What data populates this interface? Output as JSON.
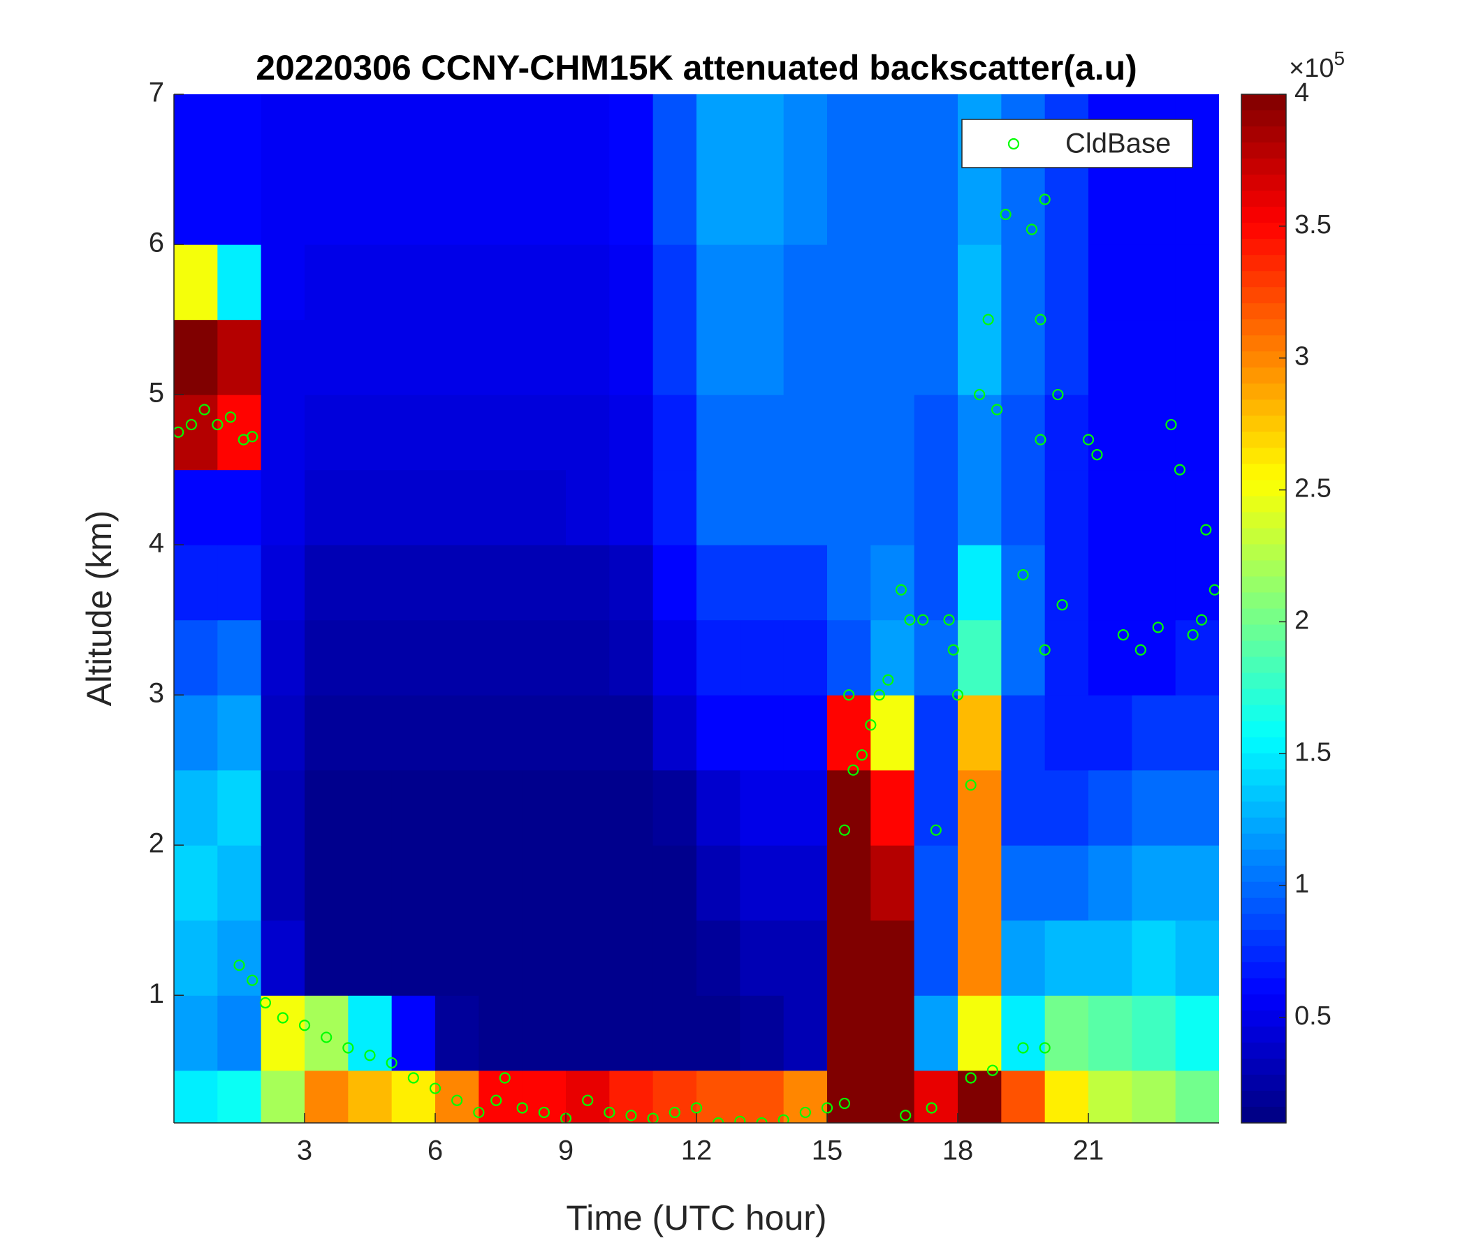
{
  "chart_data": {
    "type": "heatmap",
    "title": "20220306 CCNY-CHM15K attenuated backscatter(a.u)",
    "x_label": "Time (UTC hour)",
    "y_label": "Altitude (km)",
    "xlim": [
      0,
      24
    ],
    "xticks": [
      3,
      6,
      9,
      12,
      15,
      18,
      21
    ],
    "ylim": [
      0.15,
      7
    ],
    "yticks": [
      1,
      2,
      3,
      4,
      5,
      6,
      7
    ],
    "colormap": "jet",
    "clim": [
      0.1,
      4
    ],
    "cticks": [
      0.5,
      1,
      1.5,
      2,
      2.5,
      3,
      3.5,
      4
    ],
    "colorbar_multiplier_base": "×10",
    "colorbar_multiplier_exponent": "5",
    "legend_position": "upper right",
    "heatmap": {
      "x": [
        0.5,
        1.5,
        2.5,
        3.5,
        4.5,
        5.5,
        6.5,
        7.5,
        8.5,
        9.5,
        10.5,
        11.5,
        12.5,
        13.5,
        14.5,
        15.5,
        16.5,
        17.5,
        18.5,
        19.5,
        20.5,
        21.5,
        22.5,
        23.5
      ],
      "y": [
        0.25,
        0.75,
        1.25,
        1.75,
        2.25,
        2.75,
        3.25,
        3.75,
        4.25,
        4.75,
        5.25,
        5.75,
        6.25,
        6.75
      ],
      "z": [
        [
          1.5,
          1.6,
          2.2,
          3.0,
          2.8,
          2.6,
          3.0,
          3.5,
          3.5,
          3.6,
          3.4,
          3.3,
          3.2,
          3.2,
          3.0,
          4,
          4,
          3.6,
          4,
          3.2,
          2.6,
          2.3,
          2.2,
          2.0
        ],
        [
          1.2,
          1.1,
          2.5,
          2.2,
          1.5,
          0.6,
          0.2,
          0.15,
          0.15,
          0.15,
          0.15,
          0.15,
          0.15,
          0.2,
          0.3,
          4,
          4,
          1.2,
          2.5,
          1.5,
          2.0,
          1.9,
          1.8,
          1.6
        ],
        [
          1.3,
          1.2,
          0.4,
          0.15,
          0.15,
          0.15,
          0.15,
          0.15,
          0.15,
          0.15,
          0.15,
          0.15,
          0.2,
          0.3,
          0.3,
          4,
          4,
          0.9,
          3.0,
          1.2,
          1.3,
          1.3,
          1.4,
          1.3
        ],
        [
          1.4,
          1.3,
          0.3,
          0.15,
          0.15,
          0.15,
          0.15,
          0.15,
          0.15,
          0.15,
          0.15,
          0.15,
          0.3,
          0.4,
          0.4,
          4,
          3.8,
          0.9,
          3.0,
          1.0,
          1.0,
          1.1,
          1.2,
          1.2
        ],
        [
          1.3,
          1.4,
          0.3,
          0.15,
          0.15,
          0.15,
          0.15,
          0.15,
          0.15,
          0.15,
          0.15,
          0.2,
          0.4,
          0.5,
          0.5,
          4,
          3.5,
          0.8,
          3.0,
          0.8,
          0.8,
          0.9,
          1.0,
          1.0
        ],
        [
          1.1,
          1.2,
          0.35,
          0.2,
          0.2,
          0.2,
          0.2,
          0.2,
          0.2,
          0.2,
          0.2,
          0.4,
          0.6,
          0.6,
          0.6,
          3.5,
          2.5,
          0.8,
          2.8,
          0.8,
          0.7,
          0.7,
          0.8,
          0.8
        ],
        [
          0.9,
          1.0,
          0.4,
          0.25,
          0.25,
          0.25,
          0.25,
          0.25,
          0.25,
          0.25,
          0.3,
          0.5,
          0.7,
          0.7,
          0.7,
          0.9,
          1.2,
          1.0,
          1.8,
          1.0,
          0.7,
          0.6,
          0.6,
          0.7
        ],
        [
          0.7,
          0.7,
          0.45,
          0.3,
          0.3,
          0.3,
          0.3,
          0.3,
          0.3,
          0.3,
          0.35,
          0.6,
          0.8,
          0.8,
          0.8,
          1.0,
          1.1,
          0.9,
          1.5,
          1.0,
          0.7,
          0.6,
          0.6,
          0.6
        ],
        [
          0.6,
          0.6,
          0.5,
          0.4,
          0.4,
          0.4,
          0.4,
          0.4,
          0.4,
          0.45,
          0.5,
          0.7,
          1.0,
          1.0,
          1.0,
          1.0,
          1.0,
          0.9,
          1.1,
          0.9,
          0.7,
          0.6,
          0.6,
          0.6
        ],
        [
          3.8,
          3.5,
          0.5,
          0.45,
          0.45,
          0.45,
          0.45,
          0.45,
          0.45,
          0.45,
          0.5,
          0.7,
          1.0,
          1.0,
          1.0,
          1.0,
          1.0,
          0.9,
          1.1,
          0.9,
          0.7,
          0.6,
          0.6,
          0.6
        ],
        [
          4,
          3.8,
          0.5,
          0.5,
          0.5,
          0.5,
          0.5,
          0.5,
          0.5,
          0.5,
          0.55,
          0.8,
          1.1,
          1.1,
          1.0,
          1.0,
          1.0,
          1.0,
          1.3,
          1.0,
          0.8,
          0.6,
          0.6,
          0.6
        ],
        [
          2.5,
          1.5,
          0.55,
          0.5,
          0.5,
          0.5,
          0.5,
          0.5,
          0.5,
          0.5,
          0.55,
          0.8,
          1.1,
          1.1,
          1.0,
          1.0,
          1.0,
          1.0,
          1.3,
          1.0,
          0.8,
          0.6,
          0.6,
          0.6
        ],
        [
          0.6,
          0.6,
          0.55,
          0.55,
          0.55,
          0.55,
          0.55,
          0.55,
          0.55,
          0.55,
          0.6,
          0.9,
          1.2,
          1.2,
          1.1,
          1.0,
          1.0,
          1.0,
          1.2,
          1.0,
          0.8,
          0.6,
          0.6,
          0.6
        ],
        [
          0.6,
          0.6,
          0.55,
          0.55,
          0.55,
          0.55,
          0.55,
          0.55,
          0.55,
          0.55,
          0.6,
          0.9,
          1.2,
          1.2,
          1.1,
          1.0,
          1.0,
          1.0,
          1.2,
          1.0,
          0.8,
          0.6,
          0.6,
          0.6
        ]
      ]
    },
    "series": [
      {
        "name": "CldBase",
        "color": "#00ff00",
        "x": [
          0.1,
          0.4,
          0.7,
          1.0,
          1.3,
          1.6,
          1.8,
          1.5,
          1.8,
          2.1,
          2.5,
          3.0,
          3.5,
          4.0,
          4.5,
          5.0,
          5.5,
          6.0,
          6.5,
          7.0,
          7.4,
          7.6,
          8.0,
          8.5,
          9.0,
          9.5,
          10.0,
          10.5,
          11.0,
          11.5,
          12.0,
          12.5,
          13.0,
          13.5,
          14.0,
          14.5,
          15.0,
          15.4,
          15.4,
          15.6,
          15.8,
          16.0,
          16.2,
          16.4,
          15.5,
          16.7,
          16.9,
          17.2,
          17.5,
          17.8,
          18.0,
          17.9,
          18.3,
          18.5,
          18.7,
          18.9,
          19.1,
          19.5,
          19.7,
          19.9,
          20.0,
          19.9,
          20.3,
          20.0,
          20.4,
          21.0,
          21.2,
          21.8,
          22.2,
          22.6,
          22.9,
          23.1,
          23.4,
          23.6,
          23.9,
          23.7,
          16.8,
          17.4,
          18.3,
          18.8,
          19.5,
          20.0
        ],
        "y": [
          4.75,
          4.8,
          4.9,
          4.8,
          4.85,
          4.7,
          4.72,
          1.2,
          1.1,
          0.95,
          0.85,
          0.8,
          0.72,
          0.65,
          0.6,
          0.55,
          0.45,
          0.38,
          0.3,
          0.22,
          0.3,
          0.45,
          0.25,
          0.22,
          0.18,
          0.3,
          0.22,
          0.2,
          0.18,
          0.22,
          0.25,
          0.15,
          0.16,
          0.15,
          0.17,
          0.22,
          0.25,
          0.28,
          2.1,
          2.5,
          2.6,
          2.8,
          3.0,
          3.1,
          3.0,
          3.7,
          3.5,
          3.5,
          2.1,
          3.5,
          3.0,
          3.3,
          2.4,
          5.0,
          5.5,
          4.9,
          6.2,
          3.8,
          6.1,
          5.5,
          6.3,
          4.7,
          5.0,
          3.3,
          3.6,
          4.7,
          4.6,
          3.4,
          3.3,
          3.45,
          4.8,
          4.5,
          3.4,
          3.5,
          3.7,
          4.1,
          0.2,
          0.25,
          0.45,
          0.5,
          0.65,
          0.65
        ]
      }
    ]
  }
}
